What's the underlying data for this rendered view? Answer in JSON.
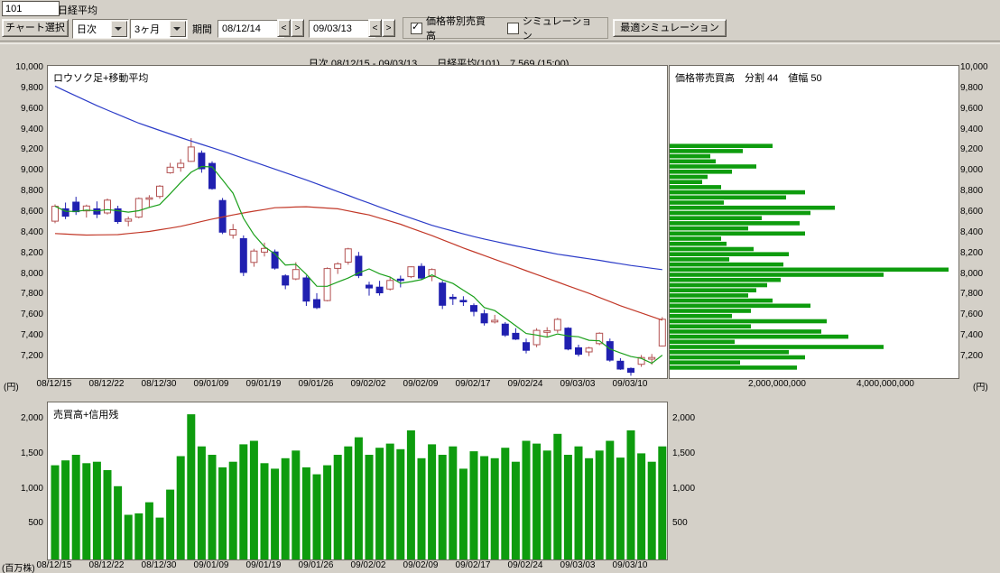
{
  "header": {
    "code_value": "101",
    "name_label": "日経平均"
  },
  "toolbar": {
    "chart_select": "チャート選択",
    "frequency": "日次",
    "range": "3ヶ月",
    "period_label": "期間",
    "date_from": "08/12/14",
    "date_to": "09/03/13",
    "prev": "<",
    "next": ">",
    "checkbox_price_volume": {
      "label": "価格帯別売買高",
      "checked": true
    },
    "checkbox_simulation": {
      "label": "シミュレーション",
      "checked": false
    },
    "optimal_simulation": "最適シミュレーション"
  },
  "status_bar": {
    "text": "日次 08/12/15 - 09/03/13　　日経平均(101)　7,569 (15:00)"
  },
  "chart_data": [
    {
      "type": "candlestick",
      "title": "ロウソク足+移動平均",
      "unit_left": "(円)",
      "unit_right": "(円)",
      "ylim": [
        7100,
        10000
      ],
      "y_ticks": [
        10000,
        9800,
        9600,
        9400,
        9200,
        9000,
        8800,
        8600,
        8400,
        8200,
        8000,
        7800,
        7600,
        7400,
        7200
      ],
      "x_labels": [
        {
          "label": "08/12/15",
          "day": 0
        },
        {
          "label": "08/12/22",
          "day": 5
        },
        {
          "label": "08/12/30",
          "day": 10
        },
        {
          "label": "09/01/09",
          "day": 15
        },
        {
          "label": "09/01/19",
          "day": 20
        },
        {
          "label": "09/01/26",
          "day": 25
        },
        {
          "label": "09/02/02",
          "day": 30
        },
        {
          "label": "09/02/09",
          "day": 35
        },
        {
          "label": "09/02/17",
          "day": 40
        },
        {
          "label": "09/02/24",
          "day": 45
        },
        {
          "label": "09/03/03",
          "day": 50
        },
        {
          "label": "09/03/10",
          "day": 55
        }
      ],
      "ohlc": [
        [
          8520,
          8683,
          8500,
          8664
        ],
        [
          8640,
          8700,
          8540,
          8568
        ],
        [
          8705,
          8756,
          8580,
          8612
        ],
        [
          8620,
          8680,
          8555,
          8667
        ],
        [
          8640,
          8712,
          8550,
          8588
        ],
        [
          8600,
          8740,
          8585,
          8724
        ],
        [
          8640,
          8670,
          8495,
          8517
        ],
        [
          8520,
          8565,
          8470,
          8540
        ],
        [
          8560,
          8750,
          8548,
          8740
        ],
        [
          8740,
          8772,
          8650,
          8747
        ],
        [
          8760,
          8870,
          8738,
          8860
        ],
        [
          8990,
          9085,
          8980,
          9043
        ],
        [
          9040,
          9122,
          9000,
          9081
        ],
        [
          9100,
          9325,
          9095,
          9239
        ],
        [
          9180,
          9205,
          8990,
          9029
        ],
        [
          9080,
          9100,
          8825,
          8836
        ],
        [
          8720,
          8745,
          8395,
          8413
        ],
        [
          8385,
          8492,
          8350,
          8438
        ],
        [
          8350,
          8382,
          7988,
          8023
        ],
        [
          8120,
          8252,
          8078,
          8230
        ],
        [
          8220,
          8312,
          8178,
          8256
        ],
        [
          8222,
          8245,
          8050,
          8065
        ],
        [
          7990,
          8005,
          7860,
          7901
        ],
        [
          7960,
          8122,
          7948,
          8051
        ],
        [
          7970,
          7992,
          7698,
          7745
        ],
        [
          7760,
          7822,
          7668,
          7682
        ],
        [
          7750,
          8072,
          7742,
          8061
        ],
        [
          8062,
          8122,
          8008,
          8106
        ],
        [
          8122,
          8262,
          8098,
          8251
        ],
        [
          8180,
          8222,
          7968,
          7994
        ],
        [
          7900,
          7932,
          7798,
          7873
        ],
        [
          7880,
          7942,
          7798,
          7825
        ],
        [
          7862,
          7982,
          7848,
          7945
        ],
        [
          7958,
          7992,
          7878,
          7950
        ],
        [
          7982,
          8082,
          7968,
          8077
        ],
        [
          8082,
          8112,
          7948,
          7969
        ],
        [
          7982,
          8062,
          7938,
          8051
        ],
        [
          7920,
          7942,
          7668,
          7705
        ],
        [
          7782,
          7812,
          7708,
          7779
        ],
        [
          7752,
          7792,
          7698,
          7750
        ],
        [
          7702,
          7722,
          7598,
          7645
        ],
        [
          7622,
          7662,
          7508,
          7534
        ],
        [
          7542,
          7612,
          7528,
          7558
        ],
        [
          7522,
          7542,
          7398,
          7416
        ],
        [
          7432,
          7482,
          7368,
          7376
        ],
        [
          7342,
          7382,
          7238,
          7268
        ],
        [
          7322,
          7482,
          7298,
          7461
        ],
        [
          7442,
          7492,
          7398,
          7457
        ],
        [
          7462,
          7582,
          7438,
          7568
        ],
        [
          7482,
          7492,
          7268,
          7280
        ],
        [
          7292,
          7322,
          7208,
          7229
        ],
        [
          7252,
          7302,
          7212,
          7290
        ],
        [
          7332,
          7442,
          7318,
          7433
        ],
        [
          7352,
          7382,
          7158,
          7173
        ],
        [
          7162,
          7192,
          7078,
          7086
        ],
        [
          7092,
          7102,
          7021,
          7054
        ],
        [
          7132,
          7222,
          7108,
          7198
        ],
        [
          7182,
          7232,
          7128,
          7198
        ],
        [
          7310,
          7590,
          7305,
          7569
        ]
      ],
      "ma_short_window": 5,
      "ma_mid": [
        8400,
        8395,
        8390,
        8385,
        8387,
        8388,
        8390,
        8400,
        8410,
        8420,
        8437,
        8453,
        8470,
        8493,
        8517,
        8540,
        8560,
        8580,
        8600,
        8617,
        8633,
        8650,
        8653,
        8657,
        8660,
        8653,
        8647,
        8640,
        8620,
        8600,
        8580,
        8550,
        8520,
        8490,
        8453,
        8417,
        8380,
        8340,
        8300,
        8260,
        8223,
        8187,
        8150,
        8113,
        8077,
        8040,
        8003,
        7967,
        7930,
        7893,
        7857,
        7820,
        7780,
        7740,
        7700,
        7665,
        7630,
        7595,
        7560
      ],
      "ma_long": [
        9830,
        9782,
        9735,
        9687,
        9640,
        9597,
        9555,
        9512,
        9470,
        9435,
        9400,
        9365,
        9330,
        9297,
        9265,
        9232,
        9200,
        9165,
        9130,
        9095,
        9060,
        9025,
        8990,
        8955,
        8920,
        8882,
        8845,
        8807,
        8770,
        8732,
        8695,
        8657,
        8620,
        8585,
        8550,
        8515,
        8480,
        8452,
        8425,
        8397,
        8370,
        8347,
        8325,
        8302,
        8280,
        8260,
        8240,
        8220,
        8200,
        8185,
        8170,
        8155,
        8140,
        8123,
        8107,
        8090,
        8077,
        8063,
        8050
      ],
      "colors": {
        "up": "#b25050",
        "down": "#2020b0",
        "ma_short": "#1ba01b",
        "ma_mid": "#c23828",
        "ma_long": "#2c3cc8"
      }
    },
    {
      "type": "hbar",
      "title": "価格帯売買高　分割 44　値幅 50",
      "price_top": 9250,
      "bin_size": 50,
      "x_ticks": [
        "2,000,000,000",
        "4,000,000,000"
      ],
      "x_tick_values": [
        2000000000,
        4000000000
      ],
      "values": [
        1900000000,
        1350000000,
        750000000,
        850000000,
        1600000000,
        1150000000,
        700000000,
        600000000,
        950000000,
        2500000000,
        2150000000,
        1000000000,
        3050000000,
        2600000000,
        1700000000,
        2400000000,
        1450000000,
        2500000000,
        950000000,
        1050000000,
        1550000000,
        2200000000,
        1100000000,
        2100000000,
        5150000000,
        3950000000,
        2050000000,
        1800000000,
        1600000000,
        1450000000,
        1900000000,
        2600000000,
        1500000000,
        1150000000,
        2900000000,
        1500000000,
        2800000000,
        3300000000,
        1200000000,
        3950000000,
        2200000000,
        2500000000,
        1300000000,
        2350000000
      ],
      "color": "#0e9c0e"
    },
    {
      "type": "bar",
      "title": "売買高+信用残",
      "unit_label": "(百万株)",
      "y_ticks": [
        2000,
        1500,
        1000,
        500
      ],
      "values": [
        1350,
        1420,
        1500,
        1380,
        1400,
        1280,
        1050,
        640,
        660,
        820,
        600,
        1000,
        1480,
        2080,
        1620,
        1500,
        1320,
        1400,
        1650,
        1700,
        1380,
        1300,
        1450,
        1560,
        1320,
        1220,
        1350,
        1500,
        1620,
        1750,
        1500,
        1600,
        1660,
        1580,
        1850,
        1450,
        1650,
        1500,
        1620,
        1300,
        1550,
        1480,
        1450,
        1600,
        1400,
        1700,
        1660,
        1560,
        1800,
        1500,
        1620,
        1450,
        1560,
        1700,
        1460,
        1850,
        1520,
        1400,
        1620
      ],
      "color": "#0e9c0e"
    }
  ]
}
